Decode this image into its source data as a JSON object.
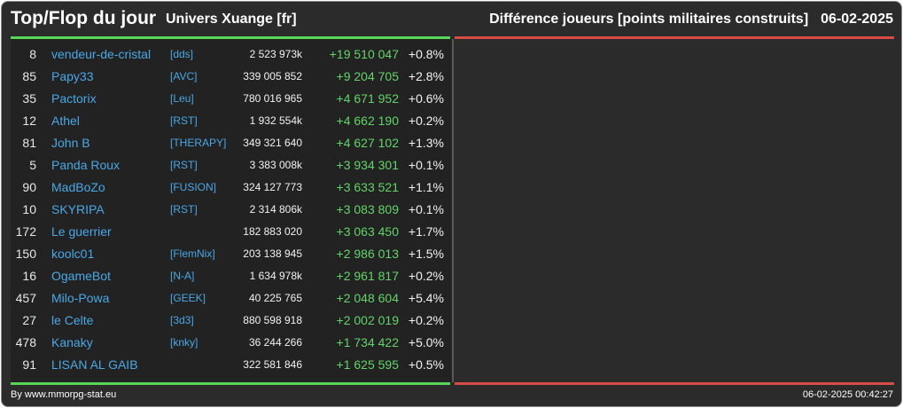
{
  "header": {
    "title": "Top/Flop du jour",
    "universe": "Univers Xuange [fr]",
    "metric": "Différence joueurs [points militaires construits]",
    "date": "06-02-2025"
  },
  "top_rows": [
    {
      "rank": "8",
      "name": "vendeur-de-cristal",
      "ally": "[dds]",
      "points": "2 523 973k",
      "diff": "+19 510 047",
      "pct": "+0.8%"
    },
    {
      "rank": "85",
      "name": "Papy33",
      "ally": "[AVC]",
      "points": "339 005 852",
      "diff": "+9 204 705",
      "pct": "+2.8%"
    },
    {
      "rank": "35",
      "name": "Pactorix",
      "ally": "[Leu]",
      "points": "780 016 965",
      "diff": "+4 671 952",
      "pct": "+0.6%"
    },
    {
      "rank": "12",
      "name": "Athel",
      "ally": "[RST]",
      "points": "1 932 554k",
      "diff": "+4 662 190",
      "pct": "+0.2%"
    },
    {
      "rank": "81",
      "name": "John B",
      "ally": "[THERAPY]",
      "points": "349 321 640",
      "diff": "+4 627 102",
      "pct": "+1.3%"
    },
    {
      "rank": "5",
      "name": "Panda Roux",
      "ally": "[RST]",
      "points": "3 383 008k",
      "diff": "+3 934 301",
      "pct": "+0.1%"
    },
    {
      "rank": "90",
      "name": "MadBoZo",
      "ally": "[FUSION]",
      "points": "324 127 773",
      "diff": "+3 633 521",
      "pct": "+1.1%"
    },
    {
      "rank": "10",
      "name": "SKYRIPA",
      "ally": "[RST]",
      "points": "2 314 806k",
      "diff": "+3 083 809",
      "pct": "+0.1%"
    },
    {
      "rank": "172",
      "name": "Le guerrier",
      "ally": "",
      "points": "182 883 020",
      "diff": "+3 063 450",
      "pct": "+1.7%"
    },
    {
      "rank": "150",
      "name": "koolc01",
      "ally": "[FlemNix]",
      "points": "203 138 945",
      "diff": "+2 986 013",
      "pct": "+1.5%"
    },
    {
      "rank": "16",
      "name": "OgameBot",
      "ally": "[N-A]",
      "points": "1 634 978k",
      "diff": "+2 961 817",
      "pct": "+0.2%"
    },
    {
      "rank": "457",
      "name": "Milo-Powa",
      "ally": "[GEEK]",
      "points": "40 225 765",
      "diff": "+2 048 604",
      "pct": "+5.4%"
    },
    {
      "rank": "27",
      "name": "le Celte",
      "ally": "[3d3]",
      "points": "880 598 918",
      "diff": "+2 002 019",
      "pct": "+0.2%"
    },
    {
      "rank": "478",
      "name": "Kanaky",
      "ally": "[knky]",
      "points": "36 244 266",
      "diff": "+1 734 422",
      "pct": "+5.0%"
    },
    {
      "rank": "91",
      "name": "LISAN AL GAIB",
      "ally": "",
      "points": "322 581 846",
      "diff": "+1 625 595",
      "pct": "+0.5%"
    }
  ],
  "footer": {
    "credit": "By www.mmorpg-stat.eu",
    "timestamp": "06-02-2025 00:42:27"
  },
  "colors": {
    "top_accent": "#58d65a",
    "flop_accent": "#d94b45",
    "player_link": "#4aa8e6",
    "positive_diff": "#62d46a",
    "panel_bg": "#2b2b2b"
  }
}
